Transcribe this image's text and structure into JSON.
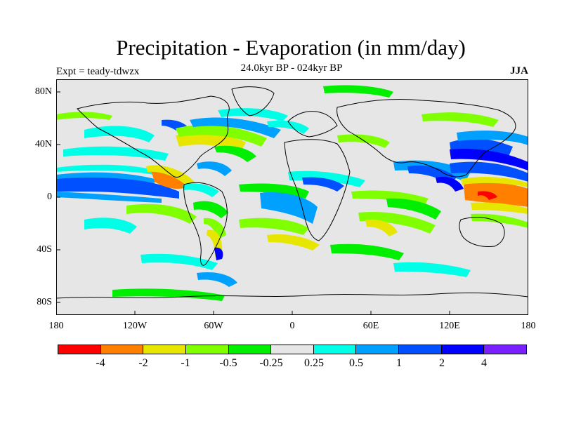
{
  "title": "Precipitation - Evaporation (in mm/day)",
  "subtitle": "24.0kyr BP - 024kyr BP",
  "left_label": "Expt = teady-tdwzx",
  "right_label": "JJA",
  "y_axis": {
    "ticks": [
      "80N",
      "40N",
      "0",
      "40S",
      "80S"
    ]
  },
  "x_axis": {
    "ticks": [
      "180",
      "120W",
      "60W",
      "0",
      "60E",
      "120E",
      "180"
    ]
  },
  "colorbar": {
    "colors": [
      "#ff0000",
      "#ff8000",
      "#e6e600",
      "#80ff00",
      "#00ee00",
      "#e6e6e6",
      "#00ffe6",
      "#00a0ff",
      "#0050ff",
      "#0000ff",
      "#7a1fff"
    ],
    "labels": [
      "-4",
      "-2",
      "-1",
      "-0.5",
      "-0.25",
      "0.25",
      "0.5",
      "1",
      "2",
      "4"
    ]
  },
  "background_color": "#e6e6e6"
}
